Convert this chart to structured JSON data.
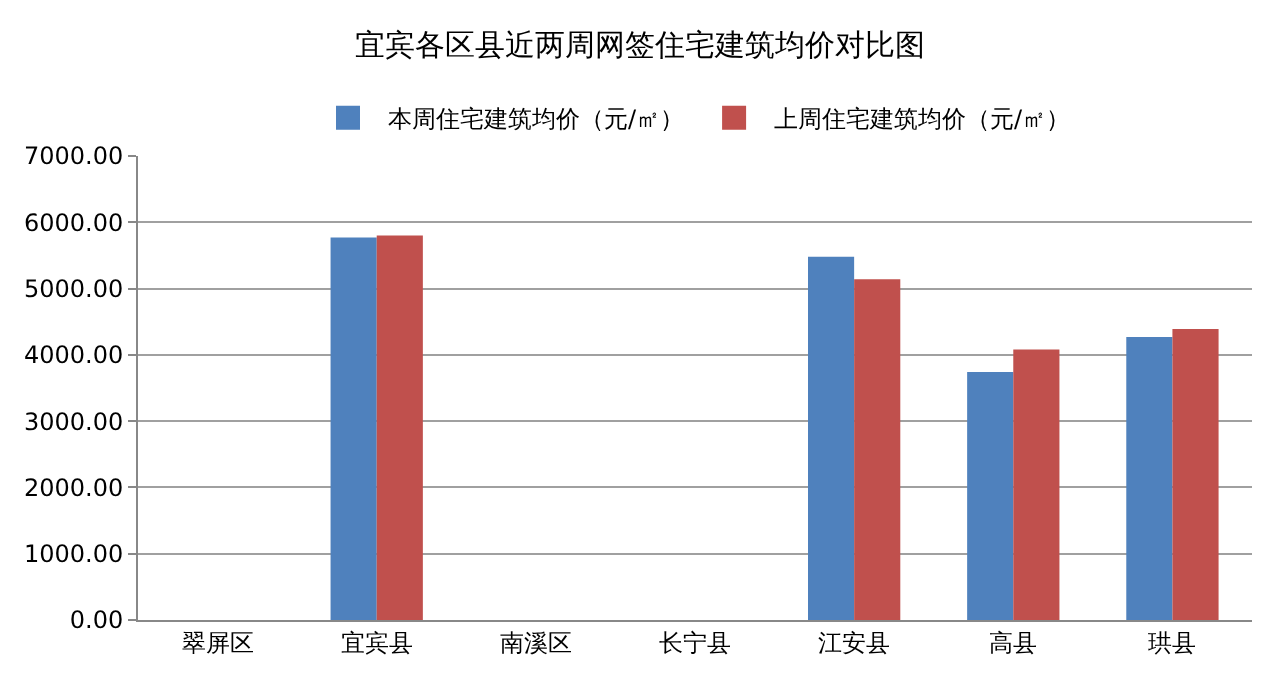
{
  "chart_data": {
    "type": "bar",
    "title": "宜宾各区县近两周网签住宅建筑均价对比图",
    "categories": [
      "翠屏区",
      "宜宾县",
      "南溪区",
      "长宁县",
      "江安县",
      "高县",
      "珙县"
    ],
    "series": [
      {
        "name": "本周住宅建筑均价（元/㎡）",
        "color": "#4f81bd",
        "values": [
          null,
          5770,
          null,
          null,
          5480,
          3740,
          4270
        ]
      },
      {
        "name": "上周住宅建筑均价（元/㎡）",
        "color": "#c0504d",
        "values": [
          null,
          5800,
          null,
          null,
          5140,
          4080,
          4390
        ]
      }
    ],
    "ylim": [
      0,
      7000
    ],
    "yticks": [
      {
        "value": 0,
        "label": "0.00"
      },
      {
        "value": 1000,
        "label": "1000.00"
      },
      {
        "value": 2000,
        "label": "2000.00"
      },
      {
        "value": 3000,
        "label": "3000.00"
      },
      {
        "value": 4000,
        "label": "4000.00"
      },
      {
        "value": 5000,
        "label": "5000.00"
      },
      {
        "value": 6000,
        "label": "6000.00"
      },
      {
        "value": 7000,
        "label": "7000.00"
      }
    ],
    "grid": "y",
    "legend": "top"
  }
}
